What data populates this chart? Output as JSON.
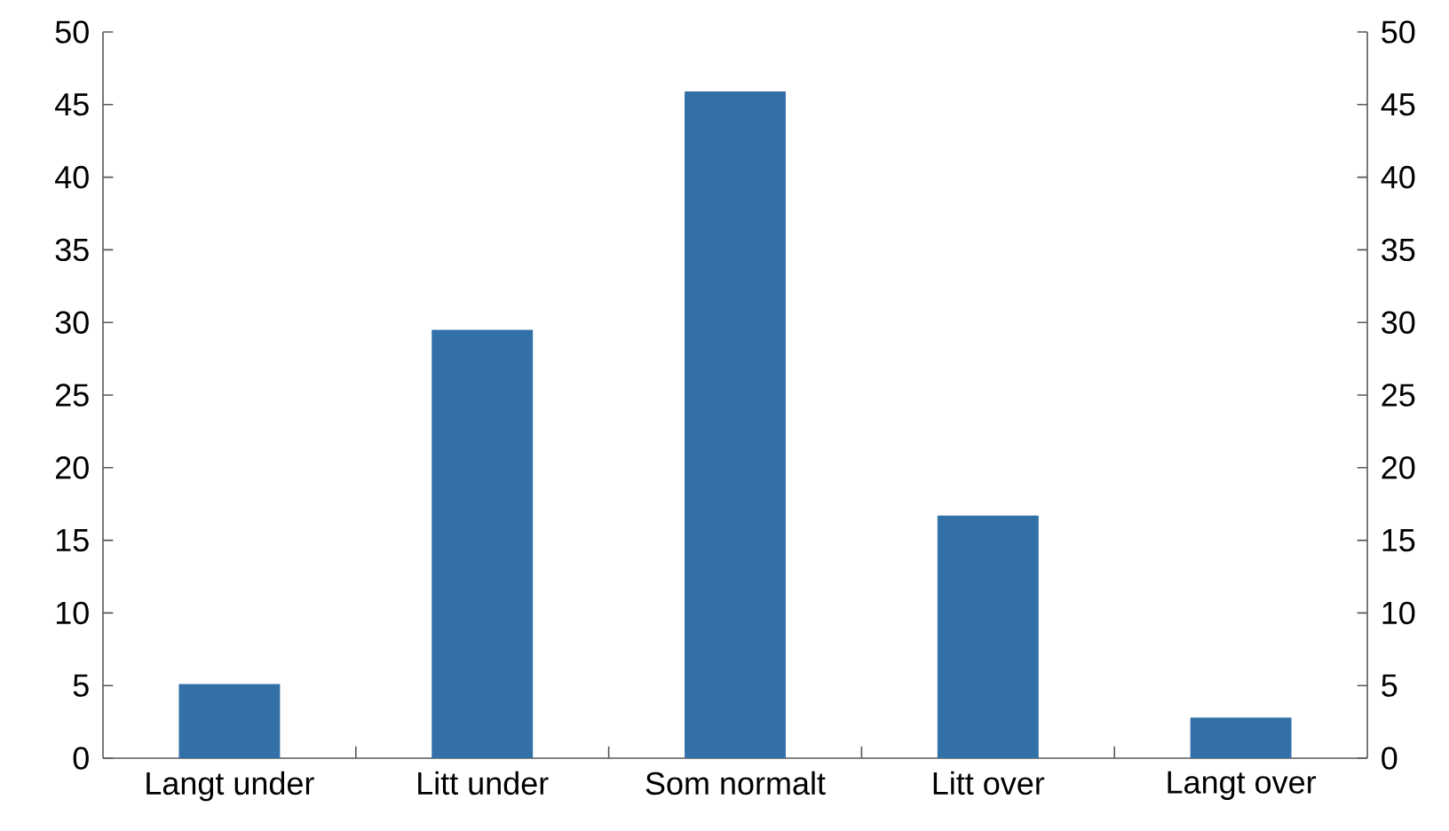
{
  "chart_data": {
    "type": "bar",
    "categories": [
      "Langt under",
      "Litt under",
      "Som normalt",
      "Litt over",
      "Langt over"
    ],
    "values": [
      5.1,
      29.5,
      45.9,
      16.7,
      2.8
    ],
    "color": "#3370a8",
    "ylim": [
      0,
      50
    ],
    "yticks": [
      0,
      5,
      10,
      15,
      20,
      25,
      30,
      35,
      40,
      45,
      50
    ],
    "y2lim": [
      0,
      50
    ],
    "y2ticks": [
      0,
      5,
      10,
      15,
      20,
      25,
      30,
      35,
      40,
      45,
      50
    ]
  }
}
